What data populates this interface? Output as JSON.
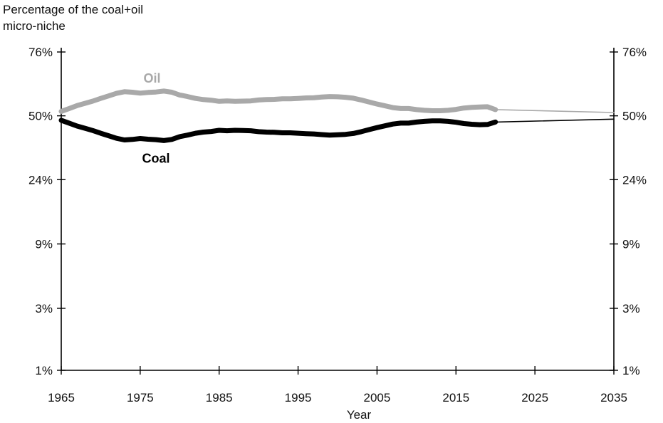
{
  "chart_data": {
    "type": "line",
    "ylabel_lines": [
      "Percentage of the coal+oil",
      "micro-niche"
    ],
    "xlabel": "Year",
    "x_ticks": [
      "1965",
      "1975",
      "1985",
      "1995",
      "2005",
      "2015",
      "2025",
      "2035"
    ],
    "xlim": [
      1965,
      2035
    ],
    "y_scale": "logit",
    "y_ticks": [
      "76%",
      "50%",
      "24%",
      "9%",
      "3%",
      "1%"
    ],
    "y_tick_values": [
      76,
      50,
      24,
      9,
      3,
      1
    ],
    "ylim": [
      1,
      76
    ],
    "grid": false,
    "colors": {
      "oil": "#a9a9a9",
      "coal": "#000000",
      "axis": "#000000"
    },
    "series": [
      {
        "name": "Oil",
        "key": "oil",
        "style": "thick",
        "x": [
          1965,
          1966,
          1967,
          1968,
          1969,
          1970,
          1971,
          1972,
          1973,
          1974,
          1975,
          1976,
          1977,
          1978,
          1979,
          1980,
          1981,
          1982,
          1983,
          1984,
          1985,
          1986,
          1987,
          1988,
          1989,
          1990,
          1991,
          1992,
          1993,
          1994,
          1995,
          1996,
          1997,
          1998,
          1999,
          2000,
          2001,
          2002,
          2003,
          2004,
          2005,
          2006,
          2007,
          2008,
          2009,
          2010,
          2011,
          2012,
          2013,
          2014,
          2015,
          2016,
          2017,
          2018,
          2019,
          2020
        ],
        "y": [
          52.0,
          53.3,
          54.6,
          55.6,
          56.6,
          57.8,
          58.9,
          60.0,
          60.7,
          60.5,
          60.1,
          60.4,
          60.6,
          61.0,
          60.5,
          59.3,
          58.6,
          57.8,
          57.3,
          57.0,
          56.5,
          56.7,
          56.5,
          56.6,
          56.7,
          57.1,
          57.3,
          57.4,
          57.6,
          57.6,
          57.8,
          58.0,
          58.1,
          58.4,
          58.6,
          58.5,
          58.3,
          57.9,
          57.1,
          56.2,
          55.3,
          54.5,
          53.7,
          53.3,
          53.3,
          52.8,
          52.5,
          52.3,
          52.3,
          52.5,
          52.9,
          53.5,
          53.8,
          54.0,
          54.1,
          52.8
        ]
      },
      {
        "name": "Coal",
        "key": "coal",
        "style": "thick",
        "x": [
          1965,
          1966,
          1967,
          1968,
          1969,
          1970,
          1971,
          1972,
          1973,
          1974,
          1975,
          1976,
          1977,
          1978,
          1979,
          1980,
          1981,
          1982,
          1983,
          1984,
          1985,
          1986,
          1987,
          1988,
          1989,
          1990,
          1991,
          1992,
          1993,
          1994,
          1995,
          1996,
          1997,
          1998,
          1999,
          2000,
          2001,
          2002,
          2003,
          2004,
          2005,
          2006,
          2007,
          2008,
          2009,
          2010,
          2011,
          2012,
          2013,
          2014,
          2015,
          2016,
          2017,
          2018,
          2019,
          2020
        ],
        "y": [
          48.0,
          46.7,
          45.4,
          44.4,
          43.4,
          42.2,
          41.1,
          40.0,
          39.3,
          39.5,
          39.9,
          39.6,
          39.4,
          39.0,
          39.5,
          40.7,
          41.4,
          42.2,
          42.7,
          43.0,
          43.5,
          43.3,
          43.5,
          43.4,
          43.3,
          42.9,
          42.7,
          42.6,
          42.4,
          42.4,
          42.2,
          42.0,
          41.9,
          41.6,
          41.4,
          41.5,
          41.7,
          42.1,
          42.9,
          43.8,
          44.7,
          45.5,
          46.3,
          46.7,
          46.7,
          47.2,
          47.5,
          47.7,
          47.7,
          47.5,
          47.1,
          46.5,
          46.2,
          46.0,
          46.1,
          47.2
        ]
      },
      {
        "name": "",
        "key": "oil-projection",
        "style": "thin",
        "x": [
          2020,
          2035
        ],
        "y": [
          52.8,
          51.5
        ]
      },
      {
        "name": "",
        "key": "coal-projection",
        "style": "thin",
        "x": [
          2020,
          2035
        ],
        "y": [
          47.2,
          48.5
        ]
      }
    ],
    "annotations": [
      {
        "text": "Oil",
        "series": "oil",
        "x": 1976.5,
        "y": 64.5
      },
      {
        "text": "Coal",
        "series": "coal",
        "x": 1977,
        "y": 30.0
      }
    ]
  }
}
